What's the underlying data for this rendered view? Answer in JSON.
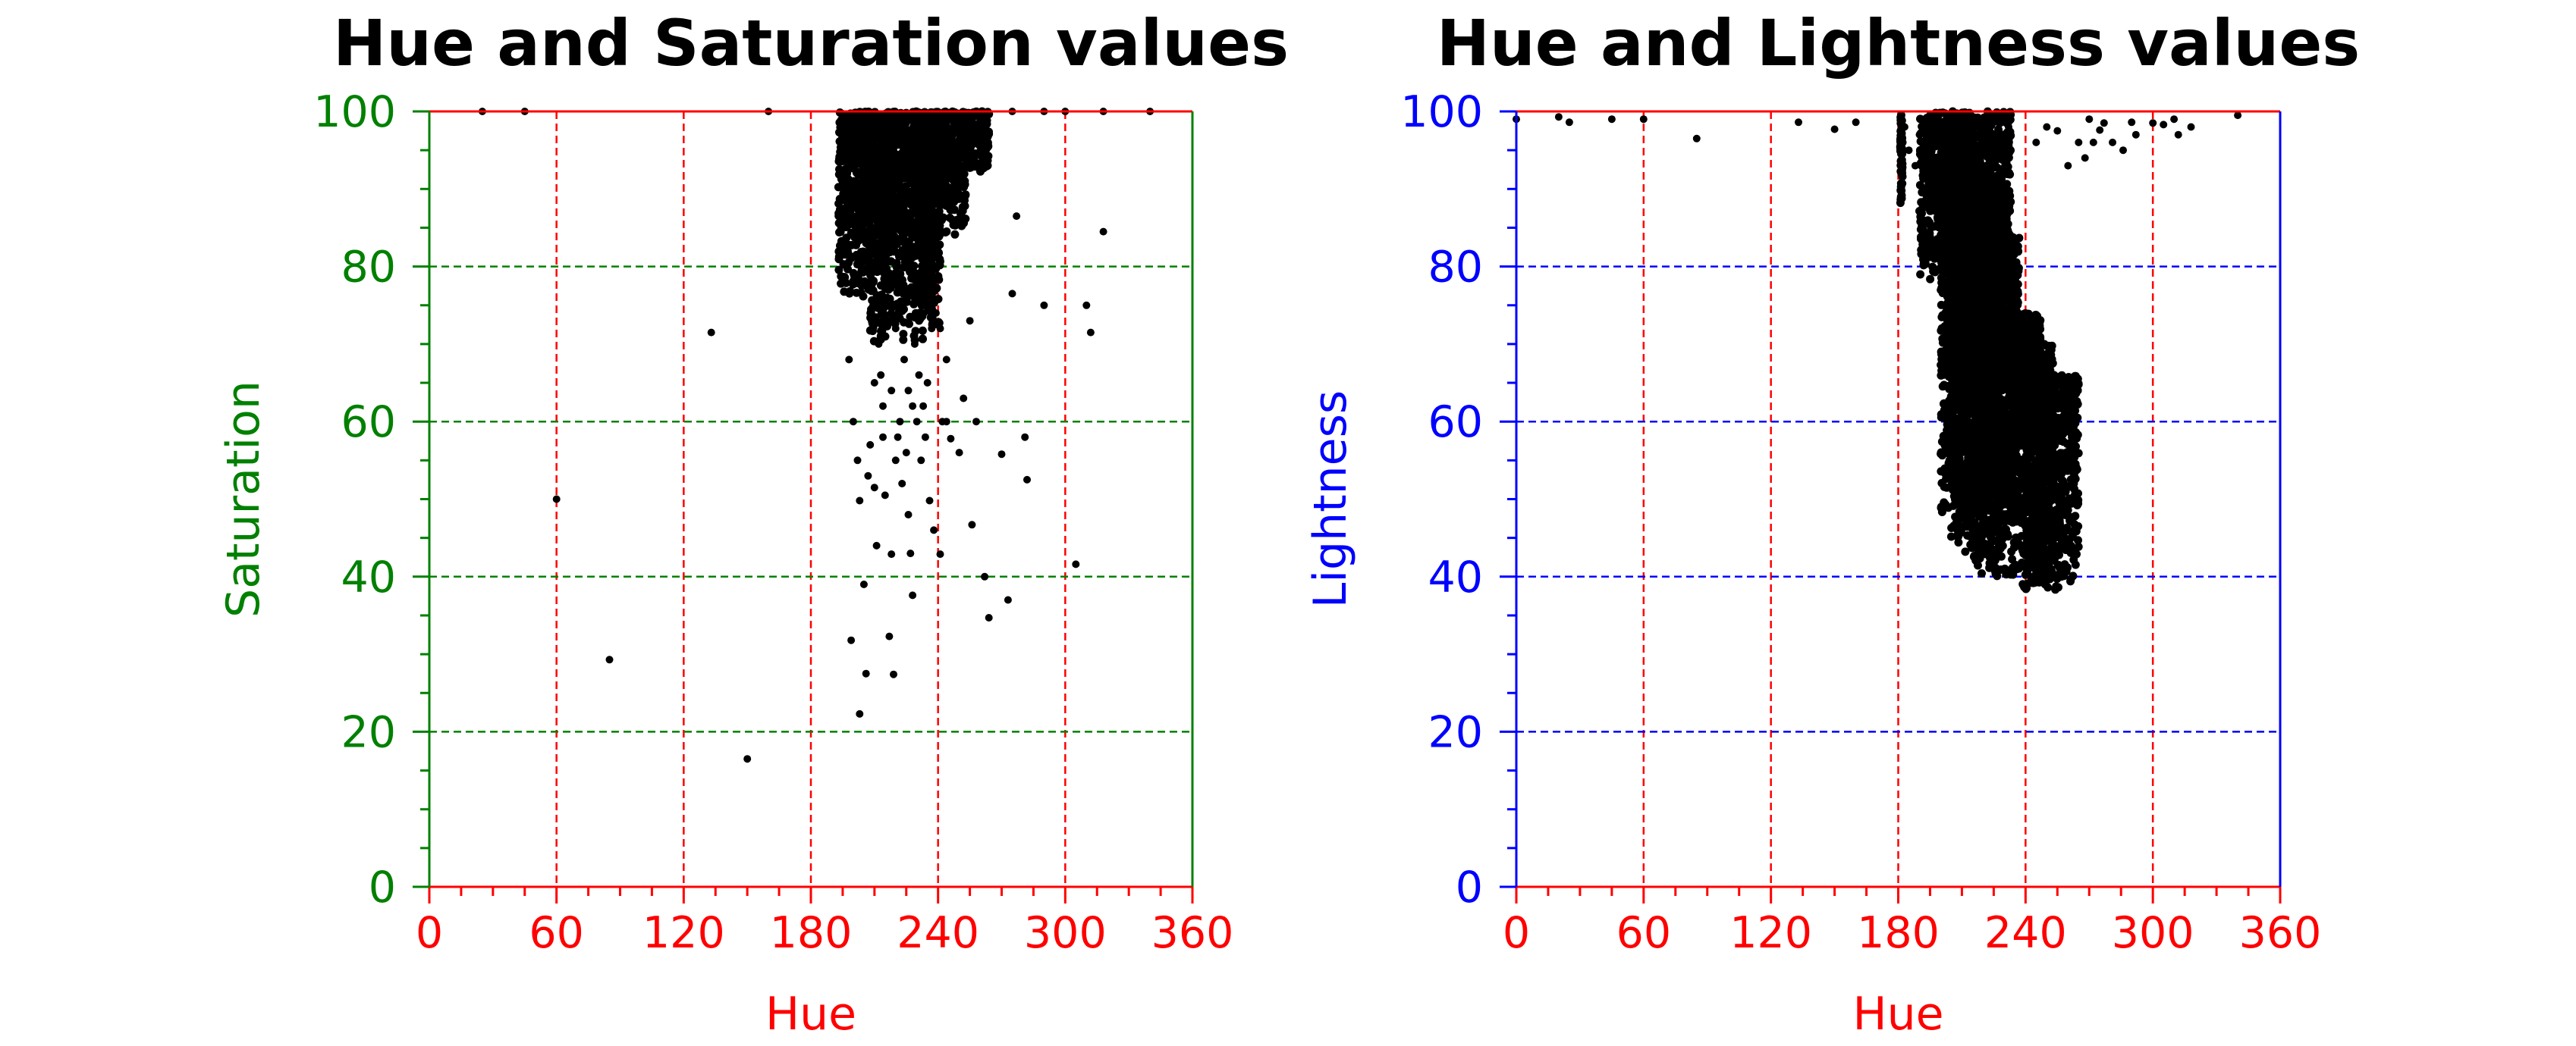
{
  "chart_data": [
    {
      "type": "scatter",
      "title": "Hue and Saturation values",
      "xlabel": "Hue",
      "ylabel": "Saturation",
      "xlim": [
        0,
        360
      ],
      "ylim": [
        0,
        100
      ],
      "xticks": [
        0,
        60,
        120,
        180,
        240,
        300,
        360
      ],
      "yticks": [
        0,
        20,
        40,
        60,
        80,
        100
      ],
      "xtick_labels": [
        "0",
        "60",
        "120",
        "180",
        "240",
        "300",
        "360"
      ],
      "ytick_labels": [
        "0",
        "20",
        "40",
        "60",
        "80",
        "100"
      ],
      "grid": true,
      "colors": {
        "x_axis": "#ff0000",
        "y_axis": "#008000",
        "points": "#000000"
      },
      "series": [
        {
          "points": [
            [
              25,
              100
            ],
            [
              45,
              100
            ],
            [
              160,
              100
            ],
            [
              275,
              100
            ],
            [
              290,
              100
            ],
            [
              300,
              100
            ],
            [
              318,
              100
            ],
            [
              340,
              100
            ],
            [
              133,
              71.5
            ],
            [
              60,
              50
            ],
            [
              85,
              29.3
            ],
            [
              150,
              16.5
            ],
            [
              198,
              68
            ],
            [
              200,
              60
            ],
            [
              202,
              55
            ],
            [
              203,
              49.8
            ],
            [
              205,
              39
            ],
            [
              206,
              27.5
            ],
            [
              199,
              31.8
            ],
            [
              203,
              22.3
            ],
            [
              207,
              53
            ],
            [
              208,
              57
            ],
            [
              210,
              51.5
            ],
            [
              211,
              44
            ],
            [
              214,
              62
            ],
            [
              215,
              50.5
            ],
            [
              217,
              32.3
            ],
            [
              218,
              42.9
            ],
            [
              219,
              27.4
            ],
            [
              220,
              55
            ],
            [
              222,
              60
            ],
            [
              223,
              52
            ],
            [
              226,
              48
            ],
            [
              227,
              43
            ],
            [
              228,
              37.6
            ],
            [
              230,
              60
            ],
            [
              232,
              55
            ],
            [
              235,
              65
            ],
            [
              236,
              49.8
            ],
            [
              238,
              46
            ],
            [
              241,
              42.9
            ],
            [
              242,
              60
            ],
            [
              244,
              68
            ],
            [
              246,
              57.8
            ],
            [
              250,
              56
            ],
            [
              252,
              63
            ],
            [
              255,
              73
            ],
            [
              256,
              46.7
            ],
            [
              258,
              60
            ],
            [
              262,
              40
            ],
            [
              264,
              34.7
            ],
            [
              270,
              55.8
            ],
            [
              273,
              37
            ],
            [
              275,
              76.5
            ],
            [
              277,
              86.5
            ],
            [
              281,
              58
            ],
            [
              282,
              52.5
            ],
            [
              290,
              75
            ],
            [
              305,
              41.6
            ],
            [
              310,
              75
            ],
            [
              312,
              71.5
            ],
            [
              318,
              84.5
            ],
            [
              205,
              78
            ],
            [
              208,
              74
            ],
            [
              212,
              70
            ],
            [
              213,
              66
            ],
            [
              216,
              76
            ],
            [
              220,
              72
            ],
            [
              224,
              68
            ],
            [
              226,
              64
            ],
            [
              229,
              70
            ],
            [
              231,
              66
            ],
            [
              233,
              62
            ],
            [
              210,
              65
            ],
            [
              214,
              58
            ],
            [
              218,
              64
            ],
            [
              221,
              58
            ],
            [
              225,
              56
            ],
            [
              228,
              62
            ],
            [
              234,
              58
            ],
            [
              237,
              72
            ],
            [
              239,
              74
            ],
            [
              241,
              72
            ],
            [
              244,
              60
            ]
          ],
          "clusters": [
            [
              [
                193,
                208
              ],
              [
                100,
                100
              ],
              [
                84,
                89
              ],
              [
                80,
                88
              ],
              [
                76,
                86
              ]
            ],
            [
              [
                208,
                215
              ],
              [
                100,
                100
              ],
              [
                74,
                82
              ],
              [
                70,
                80
              ]
            ],
            [
              [
                215,
                223
              ],
              [
                100,
                100
              ],
              [
                78,
                85
              ],
              [
                72,
                80
              ]
            ],
            [
              [
                223,
                232
              ],
              [
                100,
                100
              ],
              [
                75,
                84
              ],
              [
                70,
                78
              ]
            ],
            [
              [
                232,
                240
              ],
              [
                100,
                100
              ],
              [
                72,
                83
              ],
              [
                74,
                84
              ]
            ],
            [
              [
                240,
                252
              ],
              [
                100,
                100
              ],
              [
                88,
                96
              ],
              [
                84,
                92
              ]
            ],
            [
              [
                252,
                263
              ],
              [
                100,
                100
              ],
              [
                94,
                99
              ],
              [
                92,
                98
              ]
            ]
          ]
        }
      ]
    },
    {
      "type": "scatter",
      "title": "Hue and Lightness values",
      "xlabel": "Hue",
      "ylabel": "Lightness",
      "xlim": [
        0,
        360
      ],
      "ylim": [
        0,
        100
      ],
      "xticks": [
        0,
        60,
        120,
        180,
        240,
        300,
        360
      ],
      "yticks": [
        0,
        20,
        40,
        60,
        80,
        100
      ],
      "xtick_labels": [
        "0",
        "60",
        "120",
        "180",
        "240",
        "300",
        "360"
      ],
      "ytick_labels": [
        "0",
        "20",
        "40",
        "60",
        "80",
        "100"
      ],
      "grid": true,
      "colors": {
        "x_axis": "#ff0000",
        "y_axis": "#0000ff",
        "points": "#000000"
      },
      "series": [
        {
          "points": [
            [
              0,
              99
            ],
            [
              20,
              99.3
            ],
            [
              25,
              98.6
            ],
            [
              45,
              99
            ],
            [
              60,
              99
            ],
            [
              85,
              96.5
            ],
            [
              133,
              98.6
            ],
            [
              150,
              97.7
            ],
            [
              160,
              98.6
            ],
            [
              255,
              97.5
            ],
            [
              260,
              93
            ],
            [
              265,
              96
            ],
            [
              270,
              99
            ],
            [
              275,
              97.6
            ],
            [
              277,
              98.5
            ],
            [
              281,
              96
            ],
            [
              290,
              98.6
            ],
            [
              292,
              97
            ],
            [
              300,
              98.5
            ],
            [
              305,
              98.3
            ],
            [
              310,
              99
            ],
            [
              312,
              97
            ],
            [
              318,
              98
            ],
            [
              340,
              99.5
            ],
            [
              183,
              98
            ],
            [
              185,
              95
            ],
            [
              188,
              93
            ],
            [
              190,
              97
            ],
            [
              192,
              90
            ],
            [
              196,
              96
            ],
            [
              200,
              92
            ],
            [
              204,
              88
            ],
            [
              208,
              97
            ],
            [
              214,
              93
            ],
            [
              225,
              96
            ],
            [
              232,
              98
            ],
            [
              245,
              96
            ],
            [
              250,
              98
            ],
            [
              268,
              94
            ],
            [
              272,
              96
            ],
            [
              286,
              95
            ]
          ],
          "clusters": [
            [
              [
                181,
                181
              ],
              [
                100,
                100
              ],
              [
                88,
                88
              ]
            ],
            [
              [
                200,
                208
              ],
              [
                96,
                98
              ],
              [
                70,
                78
              ],
              [
                48,
                66
              ]
            ],
            [
              [
                204,
                212
              ],
              [
                90,
                96
              ],
              [
                62,
                76
              ],
              [
                44,
                60
              ]
            ],
            [
              [
                208,
                220
              ],
              [
                86,
                96
              ],
              [
                58,
                72
              ],
              [
                42,
                56
              ]
            ],
            [
              [
                214,
                228
              ],
              [
                80,
                92
              ],
              [
                52,
                68
              ],
              [
                40,
                52
              ]
            ],
            [
              [
                220,
                236
              ],
              [
                70,
                84
              ],
              [
                50,
                66
              ],
              [
                40,
                54
              ]
            ],
            [
              [
                230,
                238
              ],
              [
                66,
                74
              ],
              [
                56,
                66
              ],
              [
                46,
                58
              ]
            ],
            [
              [
                238,
                246
              ],
              [
                62,
                74
              ],
              [
                48,
                62
              ],
              [
                38,
                50
              ]
            ],
            [
              [
                240,
                252
              ],
              [
                56,
                70
              ],
              [
                44,
                58
              ],
              [
                38,
                48
              ]
            ],
            [
              [
                248,
                264
              ],
              [
                52,
                66
              ],
              [
                42,
                56
              ],
              [
                38,
                48
              ]
            ],
            [
              [
                190,
                232
              ],
              [
                94,
                100
              ],
              [
                84,
                96
              ],
              [
                78,
                92
              ]
            ]
          ]
        }
      ]
    }
  ]
}
